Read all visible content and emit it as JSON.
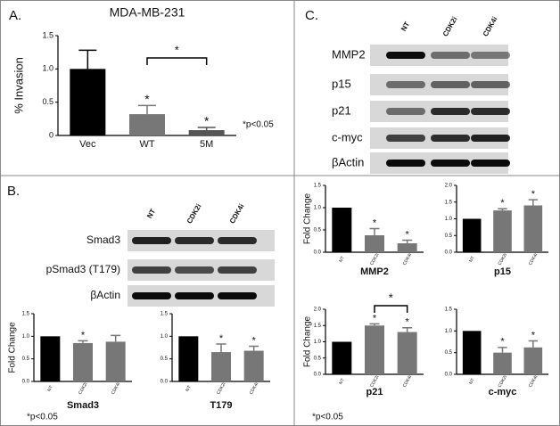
{
  "panel_labels": [
    "A.",
    "B.",
    "C."
  ],
  "blots": [
    {
      "lanes": [
        "NT",
        "CDK2i",
        "CDK4i"
      ],
      "rows": [
        "Smad3",
        "pSmad3 (T179)",
        "βActin"
      ]
    },
    {
      "lanes": [
        "NT",
        "CDK2i",
        "CDK4i"
      ],
      "rows": [
        "MMP2",
        "p15",
        "p21",
        "c-myc",
        "βActin"
      ]
    }
  ],
  "chart_data": [
    {
      "type": "bar",
      "title": "MDA-MB-231",
      "ylabel": "% Invasion",
      "categories": [
        "Vec",
        "WT",
        "5M"
      ],
      "values": [
        1.0,
        0.32,
        0.08
      ],
      "errors": [
        0.28,
        0.13,
        0.04
      ],
      "colors": [
        "#000000",
        "#777777",
        "#555555"
      ],
      "stars": [
        null,
        "*",
        "*"
      ],
      "bracket_label": "*",
      "note": "*p<0.05",
      "ylim": [
        0,
        1.5
      ],
      "yticks": [
        0,
        0.5,
        {
          "value": 1,
          "label": "1.0"
        },
        1.5
      ]
    },
    {
      "type": "bar",
      "xlabel": "Smad3",
      "ylabel": "Fold Change",
      "categories": [
        "NT",
        "CDK2i",
        "CDK4i"
      ],
      "values": [
        1.0,
        0.85,
        0.88
      ],
      "errors": [
        0,
        0.05,
        0.14
      ],
      "colors": [
        "#000000",
        "#777777",
        "#777777"
      ],
      "stars": [
        null,
        "*",
        null
      ],
      "note": "*p<0.05",
      "ylim": [
        0,
        1.5
      ],
      "yticks": [
        {
          "value": 0,
          "label": "0.0"
        },
        0.5,
        {
          "value": 1,
          "label": "1.0"
        },
        1.5
      ]
    },
    {
      "type": "bar",
      "xlabel": "T179",
      "categories": [
        "NT",
        "CDK2i",
        "CDK4i"
      ],
      "values": [
        1.0,
        0.65,
        0.68
      ],
      "errors": [
        0,
        0.18,
        0.1
      ],
      "colors": [
        "#000000",
        "#777777",
        "#777777"
      ],
      "stars": [
        null,
        "*",
        "*"
      ],
      "ylim": [
        0,
        1.5
      ],
      "yticks": [
        {
          "value": 0,
          "label": "0.0"
        },
        0.5,
        {
          "value": 1,
          "label": "1.0"
        },
        1.5
      ]
    },
    {
      "type": "bar",
      "xlabel": "MMP2",
      "ylabel": "Fold Change",
      "categories": [
        "NT",
        "CDK2i",
        "CDK4i"
      ],
      "values": [
        1.0,
        0.38,
        0.2
      ],
      "errors": [
        0,
        0.15,
        0.07
      ],
      "colors": [
        "#000000",
        "#777777",
        "#777777"
      ],
      "stars": [
        null,
        "*",
        "*"
      ],
      "ylim": [
        0,
        1.5
      ],
      "yticks": [
        {
          "value": 0,
          "label": "0.0"
        },
        0.5,
        {
          "value": 1,
          "label": "1.0"
        },
        1.5
      ]
    },
    {
      "type": "bar",
      "xlabel": "p15",
      "categories": [
        "NT",
        "CDK2i",
        "CDK4i"
      ],
      "values": [
        1.0,
        1.25,
        1.4
      ],
      "errors": [
        0,
        0.05,
        0.17
      ],
      "colors": [
        "#000000",
        "#777777",
        "#777777"
      ],
      "stars": [
        null,
        "*",
        "*"
      ],
      "ylim": [
        0,
        2
      ],
      "yticks": [
        {
          "value": 0,
          "label": "0.0"
        },
        0.5,
        {
          "value": 1,
          "label": "1.0"
        },
        1.5,
        {
          "value": 2,
          "label": "2.0"
        }
      ]
    },
    {
      "type": "bar",
      "xlabel": "p21",
      "ylabel": "Fold Change",
      "categories": [
        "NT",
        "CDK2i",
        "CDK4i"
      ],
      "values": [
        1.0,
        1.5,
        1.3
      ],
      "errors": [
        0,
        0.05,
        0.13
      ],
      "colors": [
        "#000000",
        "#777777",
        "#777777"
      ],
      "stars": [
        null,
        "*",
        "*"
      ],
      "bracket_label": "*",
      "note": "*p<0.05",
      "ylim": [
        0,
        2
      ],
      "yticks": [
        {
          "value": 0,
          "label": "0.0"
        },
        0.5,
        {
          "value": 1,
          "label": "1.0"
        },
        1.5,
        {
          "value": 2,
          "label": "2.0"
        }
      ]
    },
    {
      "type": "bar",
      "xlabel": "c-myc",
      "categories": [
        "NT",
        "CDK2i",
        "CDK4i"
      ],
      "values": [
        1.0,
        0.5,
        0.62
      ],
      "errors": [
        0,
        0.12,
        0.15
      ],
      "colors": [
        "#000000",
        "#777777",
        "#777777"
      ],
      "stars": [
        null,
        "*",
        "*"
      ],
      "ylim": [
        0,
        1.5
      ],
      "yticks": [
        {
          "value": 0,
          "label": "0.0"
        },
        0.5,
        {
          "value": 1,
          "label": "1.0"
        },
        1.5
      ]
    }
  ]
}
